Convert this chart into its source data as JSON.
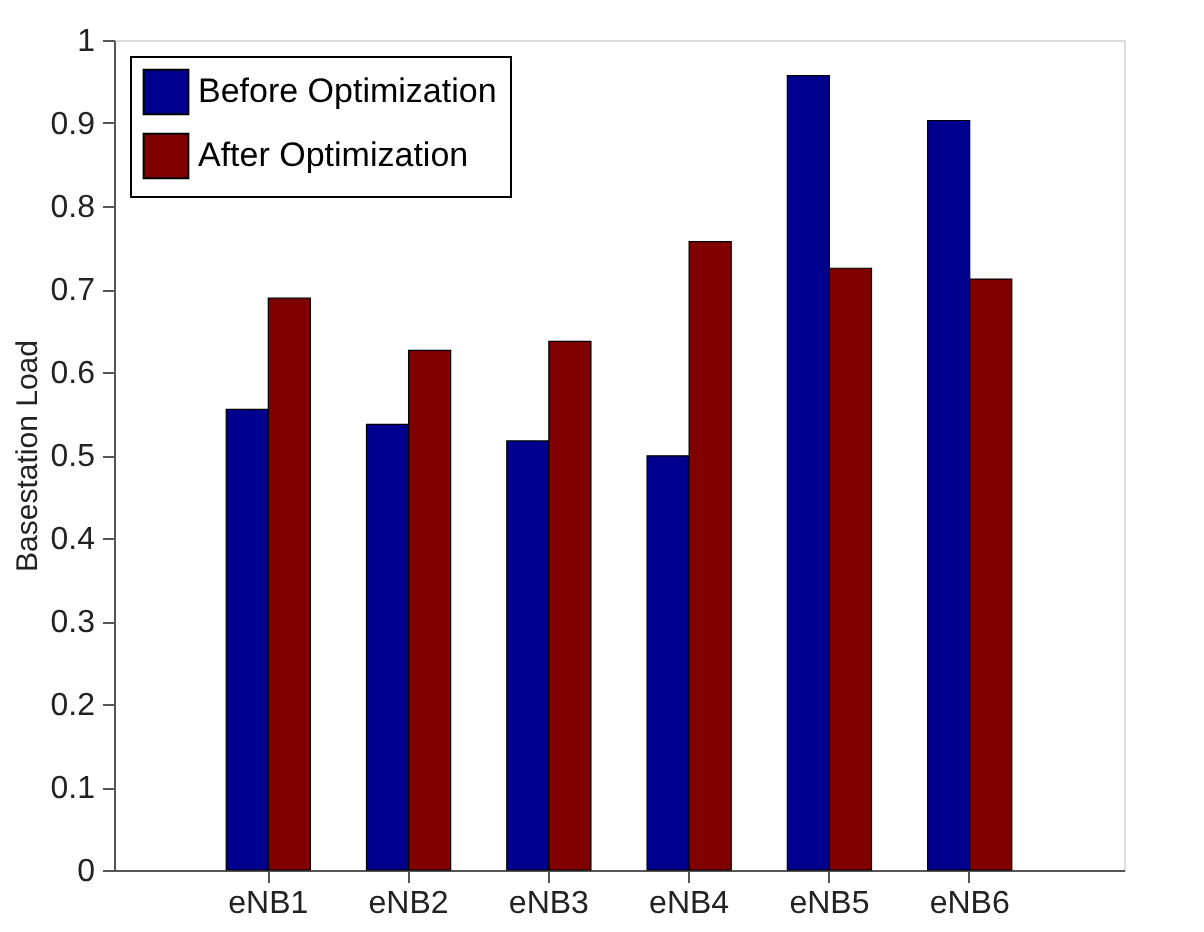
{
  "chart_data": {
    "type": "bar",
    "ylabel": "Basestation Load",
    "categories": [
      "eNB1",
      "eNB2",
      "eNB3",
      "eNB4",
      "eNB5",
      "eNB6"
    ],
    "series": [
      {
        "name": "Before Optimization",
        "color": "#00008f",
        "values": [
          0.555,
          0.537,
          0.517,
          0.499,
          0.957,
          0.903
        ]
      },
      {
        "name": "After Optimization",
        "color": "#800000",
        "values": [
          0.689,
          0.626,
          0.637,
          0.757,
          0.725,
          0.712
        ]
      }
    ],
    "ylim": [
      0,
      1
    ],
    "yticks": [
      0,
      0.1,
      0.2,
      0.3,
      0.4,
      0.5,
      0.6,
      0.7,
      0.8,
      0.9,
      1
    ],
    "grid": false,
    "legend": "top left"
  }
}
